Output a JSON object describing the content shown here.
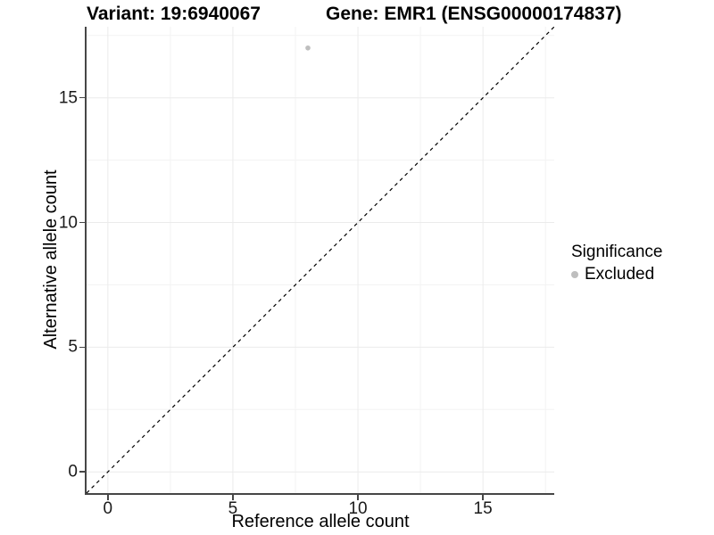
{
  "chart_data": {
    "type": "scatter",
    "title_left": "Variant: 19:6940067",
    "title_right": "Gene: EMR1 (ENSG00000174837)",
    "xlabel": "Reference allele count",
    "ylabel": "Alternative allele count",
    "xlim": [
      -0.85,
      17.85
    ],
    "ylim": [
      -0.85,
      17.85
    ],
    "xticks": [
      0,
      5,
      10,
      15
    ],
    "yticks": [
      0,
      5,
      10,
      15
    ],
    "xticks_minor": [
      2.5,
      7.5,
      12.5,
      17.5
    ],
    "yticks_minor": [
      2.5,
      7.5,
      12.5,
      17.5
    ],
    "grid": "major+minor",
    "series": [
      {
        "name": "Excluded",
        "color": "#bebebe",
        "points": [
          {
            "x": 8,
            "y": 17
          }
        ]
      }
    ],
    "reference_line": {
      "equation": "y = x",
      "style": "dashed",
      "color": "#000000"
    },
    "legend": {
      "title": "Significance",
      "position": "right",
      "entries": [
        {
          "label": "Excluded",
          "color": "#bebebe"
        }
      ]
    },
    "colors": {
      "background": "#ffffff",
      "grid_major": "#ebebeb",
      "grid_minor": "#f3f3f3",
      "axis_line": "#464646",
      "axis_text": "#1a1a1a",
      "title_text": "#000000"
    }
  }
}
